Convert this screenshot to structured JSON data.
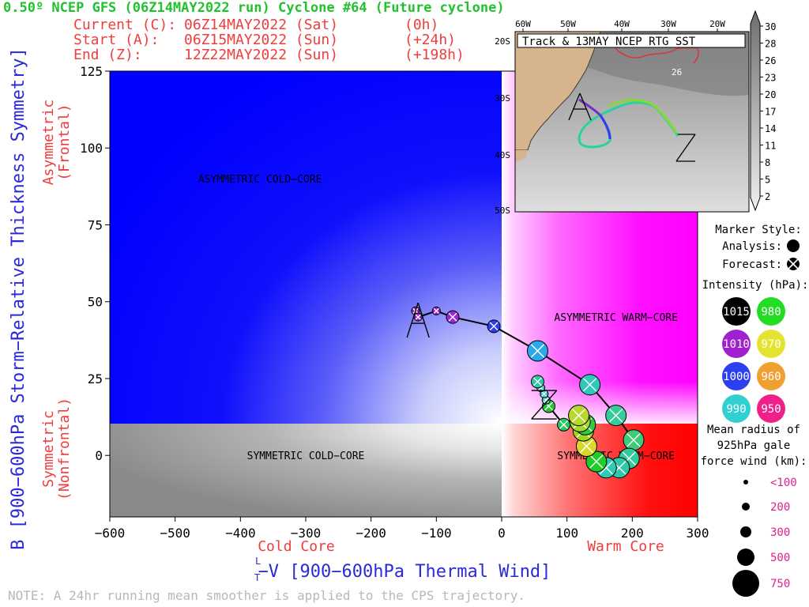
{
  "header": {
    "title": "0.50º NCEP GFS (06Z14MAY2022 run) Cyclone #64 (Future cyclone)",
    "current_label": "Current (C):",
    "current_time": "06Z14MAY2022 (Sat)",
    "current_offset": "(0h)",
    "start_label": "Start (A):",
    "start_time": "06Z15MAY2022 (Sun)",
    "start_offset": "(+24h)",
    "end_label": "End (Z):",
    "end_time": "12Z22MAY2022 (Sun)",
    "end_offset": "(+198h)"
  },
  "footer": {
    "note": "NOTE: A 24hr running mean smoother is applied to the CPS trajectory."
  },
  "chart_data": [
    {
      "type": "scatter",
      "xlabel": "−V  [900−600hPa Thermal Wind]",
      "xlabel_symbol": "T",
      "xlabel_super": "L",
      "ylabel": "B [900−600hPa Storm−Relative Thickness Symmetry]",
      "xlim": [
        -600,
        300
      ],
      "ylim": [
        -20,
        125
      ],
      "x_ticks": [
        -600,
        -500,
        -400,
        -300,
        -200,
        -100,
        0,
        100,
        200,
        300
      ],
      "x_tick_labels": [
        "−600",
        "−500",
        "−400",
        "−300",
        "−200",
        "−100",
        "0",
        "100",
        "200",
        "300"
      ],
      "y_ticks": [
        0,
        25,
        50,
        75,
        100,
        125
      ],
      "cold_core_label": "Cold Core",
      "warm_core_label": "Warm Core",
      "asymmetric_label": [
        "Asymmetric",
        "(Frontal)"
      ],
      "symmetric_label": [
        "Symmetric",
        "(Nonfrontal)"
      ],
      "quadrants": [
        {
          "label": "ASYMMETRIC COLD−CORE",
          "x": -370,
          "y": 90
        },
        {
          "label": "ASYMMETRIC WARM−CORE",
          "x": 175,
          "y": 45
        },
        {
          "label": "SYMMETRIC COLD−CORE",
          "x": -300,
          "y": 0
        },
        {
          "label": "SYMMETRIC WARM−CORE",
          "x": 175,
          "y": 0
        }
      ],
      "start_marker": {
        "label": "A",
        "x": -128,
        "y": 44
      },
      "end_marker": {
        "label": "Z",
        "x": 65,
        "y": 17
      },
      "points": [
        {
          "x": -132,
          "y": 47,
          "p": 1010,
          "r": 200,
          "color": "#a020d0"
        },
        {
          "x": -128,
          "y": 45,
          "p": 1010,
          "r": 200,
          "color": "#a020d0"
        },
        {
          "x": -100,
          "y": 47,
          "p": 1010,
          "r": 200,
          "color": "#a020d0"
        },
        {
          "x": -75,
          "y": 45,
          "p": 1005,
          "r": 300,
          "color": "#9a28d8"
        },
        {
          "x": -12,
          "y": 42,
          "p": 1000,
          "r": 300,
          "color": "#2b3ef0"
        },
        {
          "x": 55,
          "y": 34,
          "p": 995,
          "r": 500,
          "color": "#2aa8ea"
        },
        {
          "x": 135,
          "y": 23,
          "p": 990,
          "r": 500,
          "color": "#30c8b8"
        },
        {
          "x": 175,
          "y": 13,
          "p": 990,
          "r": 500,
          "color": "#34cc98"
        },
        {
          "x": 202,
          "y": 5,
          "p": 985,
          "r": 500,
          "color": "#3ccc78"
        },
        {
          "x": 195,
          "y": -1,
          "p": 985,
          "r": 500,
          "color": "#30cc9c"
        },
        {
          "x": 180,
          "y": -4,
          "p": 985,
          "r": 500,
          "color": "#30c8a8"
        },
        {
          "x": 160,
          "y": -4,
          "p": 985,
          "r": 500,
          "color": "#2ecab4"
        },
        {
          "x": 145,
          "y": -2,
          "p": 980,
          "r": 500,
          "color": "#20cc28"
        },
        {
          "x": 130,
          "y": 3,
          "p": 970,
          "r": 500,
          "color": "#d8d828"
        },
        {
          "x": 125,
          "y": 8,
          "p": 975,
          "r": 500,
          "color": "#a0d820"
        },
        {
          "x": 128,
          "y": 10,
          "p": 980,
          "r": 500,
          "color": "#30cc40"
        },
        {
          "x": 120,
          "y": 11,
          "p": 975,
          "r": 500,
          "color": "#a8d828"
        },
        {
          "x": 118,
          "y": 13,
          "p": 975,
          "r": 500,
          "color": "#b8d830"
        },
        {
          "x": 95,
          "y": 10,
          "p": 980,
          "r": 300,
          "color": "#24c860"
        },
        {
          "x": 72,
          "y": 16,
          "p": 980,
          "r": 300,
          "color": "#20c830"
        },
        {
          "x": 68,
          "y": 18,
          "p": 990,
          "r": 200,
          "color": "#30c8c8"
        },
        {
          "x": 65,
          "y": 20,
          "p": 990,
          "r": 200,
          "color": "#30c8c8"
        },
        {
          "x": 60,
          "y": 22,
          "p": 990,
          "r": 200,
          "color": "#30c8b0"
        },
        {
          "x": 55,
          "y": 24,
          "p": 988,
          "r": 300,
          "color": "#30c8a0"
        }
      ]
    },
    {
      "type": "map",
      "title": "Track & 13MAY NCEP RTG SST",
      "lon_labels": [
        "60W",
        "50W",
        "40W",
        "30W",
        "20W"
      ],
      "lat_labels": [
        "20S",
        "30S",
        "40S",
        "50S"
      ],
      "sst_contour_label": "26",
      "start_marker": "A",
      "end_marker": "Z",
      "colorbar_ticks": [
        "30",
        "28",
        "26",
        "23",
        "20",
        "17",
        "14",
        "11",
        "8",
        "5",
        "2"
      ]
    }
  ],
  "legend": {
    "marker_style_title": "Marker Style:",
    "analysis_label": "Analysis:",
    "forecast_label": "Forecast:",
    "intensity_title": "Intensity (hPa):",
    "intensity": [
      {
        "value": "1015",
        "color": "#000000"
      },
      {
        "value": "980",
        "color": "#22dd22"
      },
      {
        "value": "1010",
        "color": "#a020d0"
      },
      {
        "value": "970",
        "color": "#e4e430"
      },
      {
        "value": "1000",
        "color": "#2b3ef0"
      },
      {
        "value": "960",
        "color": "#f0a030"
      },
      {
        "value": "990",
        "color": "#30d0d0"
      },
      {
        "value": "950",
        "color": "#f0208a"
      }
    ],
    "radius_title_1": "Mean radius of",
    "radius_title_2": "925hPa gale",
    "radius_title_3": "force wind (km):",
    "radii": [
      {
        "label": "<100",
        "size": 100
      },
      {
        "label": "200",
        "size": 200
      },
      {
        "label": "300",
        "size": 300
      },
      {
        "label": "500",
        "size": 500
      },
      {
        "label": "750",
        "size": 750
      }
    ]
  },
  "colors": {
    "title_green": "#22c22e",
    "header_red": "#f03c3c",
    "axis_blue": "#2a2ad8",
    "asym_cold": "#0000ff",
    "asym_warm": "#ff00ff",
    "sym_cold": "#808080",
    "sym_warm": "#ff0000",
    "track_line": "#000000"
  }
}
